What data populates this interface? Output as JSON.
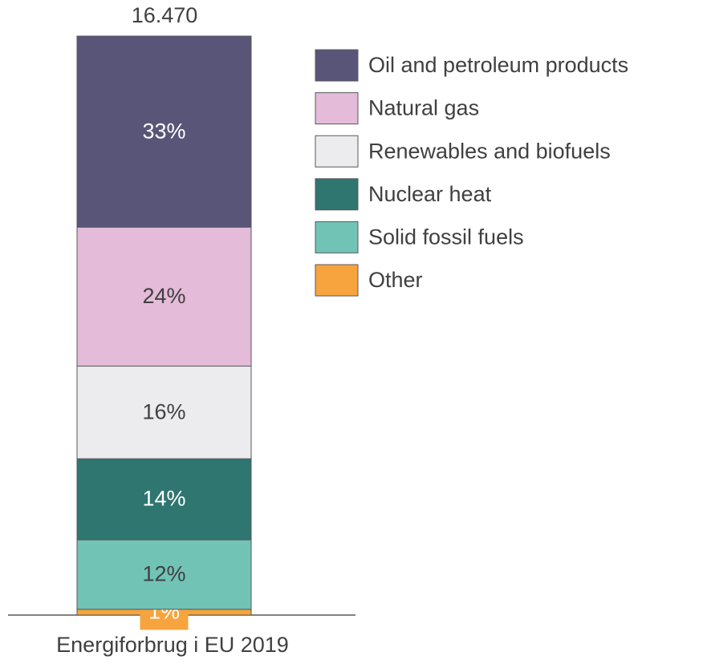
{
  "chart_data": {
    "type": "stacked_bar",
    "categories": [
      "Energiforbrug i EU 2019"
    ],
    "total_label": "16.470",
    "series": [
      {
        "name": "Oil and petroleum products",
        "color": "#585579",
        "values": [
          33
        ],
        "value_labels": [
          "33%"
        ]
      },
      {
        "name": "Natural gas",
        "color": "#e4bbd9",
        "values": [
          24
        ],
        "value_labels": [
          "24%"
        ]
      },
      {
        "name": "Renewables and biofuels",
        "color": "#ececef",
        "values": [
          16
        ],
        "value_labels": [
          "16%"
        ]
      },
      {
        "name": "Nuclear heat",
        "color": "#2f7570",
        "values": [
          14
        ],
        "value_labels": [
          "14%"
        ]
      },
      {
        "name": "Solid fossil fuels",
        "color": "#71c3b6",
        "values": [
          12
        ],
        "value_labels": [
          "12%"
        ]
      },
      {
        "name": "Other",
        "color": "#f7a43e",
        "values": [
          1
        ],
        "value_labels": [
          "1%"
        ]
      }
    ],
    "ylim": [
      0,
      100
    ],
    "legend": "right"
  }
}
